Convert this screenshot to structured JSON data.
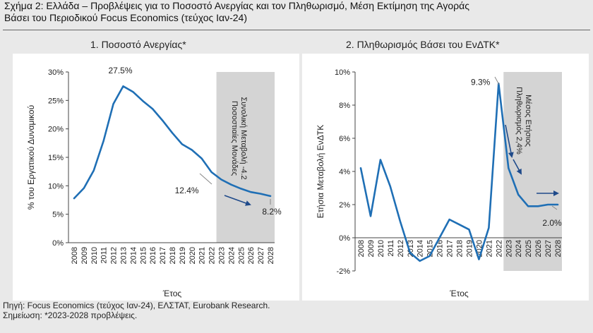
{
  "figure": {
    "title_line1": "Σχήμα 2: Ελλάδα – Προβλέψεις για το Ποσοστό Ανεργίας και τον Πληθωρισμό, Μέση Εκτίμηση της Αγοράς",
    "title_line2": "Βάσει του Περιοδικού Focus Economics (τεύχος Ιαν-24)",
    "source": "Πηγή: Focus Economics (τεύχος Ιαν-24), ΕΛΣΤΑΤ, Eurobank Research.",
    "note": "Σημείωση: *2023-2028 προβλέψεις."
  },
  "colors": {
    "line": "#1f6fb5",
    "arrow": "#1f4a8a",
    "forecast_shade": "#d4d4d4",
    "panel_bg": "#ffffff",
    "page_bg": "#e9e9e9"
  },
  "chart_data": [
    {
      "type": "line",
      "title": "1. Ποσοστό Ανεργίας*",
      "xlabel": "Έτος",
      "ylabel": "% του Εργατικού Δυναμικού",
      "x": [
        "2008",
        "2009",
        "2010",
        "2011",
        "2012",
        "2013",
        "2014",
        "2015",
        "2016",
        "2017",
        "2018",
        "2019",
        "2020",
        "2021",
        "2022",
        "2023",
        "2024",
        "2025",
        "2026",
        "2027",
        "2028"
      ],
      "series": [
        {
          "values": [
            7.8,
            9.6,
            12.7,
            17.9,
            24.4,
            27.5,
            26.5,
            24.9,
            23.5,
            21.5,
            19.3,
            17.3,
            16.3,
            14.8,
            12.4,
            11.1,
            10.2,
            9.5,
            8.9,
            8.6,
            8.2
          ]
        }
      ],
      "ylim": [
        0,
        30
      ],
      "yticks": [
        0,
        5,
        10,
        15,
        20,
        25,
        30
      ],
      "ytick_labels": [
        "0%",
        "5%",
        "10%",
        "15%",
        "20%",
        "25%",
        "30%"
      ],
      "forecast_start": "2023",
      "forecast_end": "2028",
      "annotations": [
        {
          "text": "27.5%",
          "x": "2013",
          "y": 27.5
        },
        {
          "text": "12.4%",
          "x": "2022",
          "y": 12.4
        },
        {
          "text": "8.2%",
          "x": "2028",
          "y": 8.2
        }
      ],
      "shade_label_line1": "Συνολική Μεταβολή -4.2",
      "shade_label_line2": "Ποσοστιαίες Μονάδες",
      "grid": false
    },
    {
      "type": "line",
      "title": "2. Πληθωρισμός Βάσει του ΕνΔΤΚ*",
      "xlabel": "Έτος",
      "ylabel": "Ετήσια Μεταβολή ΕνΔΤΚ",
      "x": [
        "2008",
        "2009",
        "2010",
        "2011",
        "2012",
        "2013",
        "2014",
        "2015",
        "2016",
        "2017",
        "2018",
        "2019",
        "2020",
        "2021",
        "2022",
        "2023",
        "2024",
        "2025",
        "2026",
        "2027",
        "2028"
      ],
      "series": [
        {
          "values": [
            4.2,
            1.3,
            4.7,
            3.1,
            1.0,
            -0.9,
            -1.4,
            -1.1,
            0.0,
            1.1,
            0.8,
            0.5,
            -1.3,
            0.6,
            9.3,
            4.2,
            2.6,
            1.9,
            1.9,
            2.0,
            2.0
          ]
        }
      ],
      "ylim": [
        -2,
        10
      ],
      "yticks": [
        -2,
        0,
        2,
        4,
        6,
        8,
        10
      ],
      "ytick_labels": [
        "-2%",
        "0%",
        "2%",
        "4%",
        "6%",
        "8%",
        "10%"
      ],
      "forecast_start": "2023",
      "forecast_end": "2028",
      "annotations": [
        {
          "text": "9.3%",
          "x": "2022",
          "y": 9.3
        },
        {
          "text": "2.0%",
          "x": "2028",
          "y": 2.0
        }
      ],
      "shade_label_line1": "Μέσος Ετήσιος",
      "shade_label_line2": "Πληθωρισμός 2,4%",
      "grid": false
    }
  ]
}
